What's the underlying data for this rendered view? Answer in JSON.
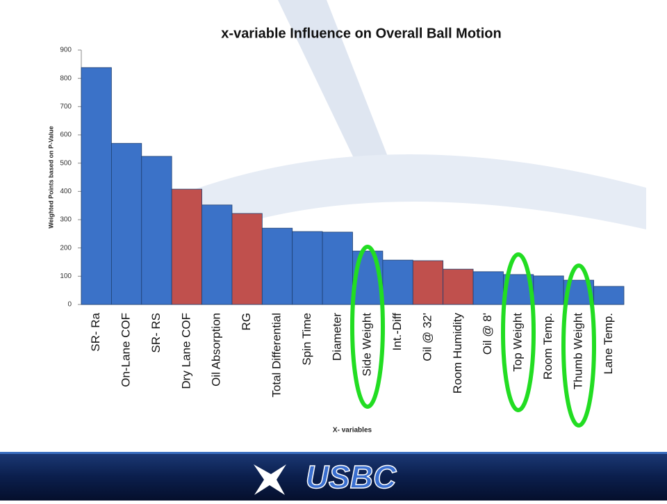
{
  "chart_data": {
    "type": "bar",
    "title": "x-variable Influence on Overall Ball Motion",
    "y_label": "Weighted Points based on P-Value",
    "x_label": "X- variables",
    "categories": [
      "SR- Ra",
      "On-Lane COF",
      "SR- RS",
      "Dry Lane COF",
      "Oil Absorption",
      "RG",
      "Total Differential",
      "Spin Time",
      "Diameter",
      "Side Weight",
      "Int.-Diff",
      "Oil @ 32'",
      "Room Humidity",
      "Oil @ 8'",
      "Top Weight",
      "Room Temp.",
      "Thumb Weight",
      "Lane Temp."
    ],
    "values": [
      838,
      570,
      524,
      408,
      352,
      322,
      270,
      258,
      256,
      189,
      157,
      155,
      125,
      116,
      106,
      101,
      86,
      64
    ],
    "colors": [
      "#3b72c8",
      "#3b72c8",
      "#3b72c8",
      "#c0504d",
      "#3b72c8",
      "#c0504d",
      "#3b72c8",
      "#3b72c8",
      "#3b72c8",
      "#3b72c8",
      "#3b72c8",
      "#c0504d",
      "#c0504d",
      "#3b72c8",
      "#3b72c8",
      "#3b72c8",
      "#3b72c8",
      "#3b72c8"
    ],
    "ylim": [
      0,
      900
    ],
    "yticks": [
      0,
      100,
      200,
      300,
      400,
      500,
      600,
      700,
      800,
      900
    ],
    "grid": false
  },
  "footer": {
    "logo": "USBC"
  }
}
